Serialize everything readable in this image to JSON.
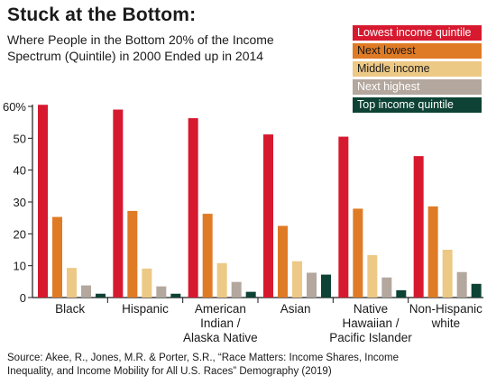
{
  "title": "Stuck at the Bottom:",
  "subtitle": "Where People in the Bottom 20% of the Income Spectrum (Quintile) in 2000 Ended up in 2014",
  "source": "Source: Akee, R., Jones, M.R. & Porter, S.R., “Race Matters: Income Shares, Income Inequality, and Income Mobility for All U.S. Races” Demography (2019)",
  "chart_data": {
    "type": "bar",
    "categories": [
      [
        "Black"
      ],
      [
        "Hispanic"
      ],
      [
        "American",
        "Indian /",
        "Alaska Native"
      ],
      [
        "Asian"
      ],
      [
        "Native",
        "Hawaiian /",
        "Pacific Islander"
      ],
      [
        "Non-Hispanic",
        "white"
      ]
    ],
    "series": [
      {
        "name": "Lowest income quintile",
        "color": "#d7192f",
        "text_color": "#ffffff",
        "values": [
          60.5,
          59.0,
          56.3,
          51.2,
          50.5,
          44.4
        ]
      },
      {
        "name": "Next lowest",
        "color": "#e07b25",
        "text_color": "#1a1a1a",
        "values": [
          25.3,
          27.2,
          26.3,
          22.5,
          27.9,
          28.6
        ]
      },
      {
        "name": "Middle income",
        "color": "#edc986",
        "text_color": "#1a1a1a",
        "values": [
          9.3,
          9.1,
          10.8,
          11.4,
          13.3,
          15.0
        ]
      },
      {
        "name": "Next highest",
        "color": "#b3a79e",
        "text_color": "#ffffff",
        "values": [
          3.8,
          3.5,
          4.9,
          7.8,
          6.3,
          8.0
        ]
      },
      {
        "name": "Top income quintile",
        "color": "#0d4234",
        "text_color": "#ffffff",
        "values": [
          1.2,
          1.2,
          1.8,
          7.2,
          2.3,
          4.3
        ]
      }
    ],
    "ylim": [
      0,
      60
    ],
    "yticks": [
      "0",
      "10",
      "20",
      "30",
      "40",
      "50",
      "60%"
    ],
    "grid": false,
    "legend": "top-right"
  }
}
